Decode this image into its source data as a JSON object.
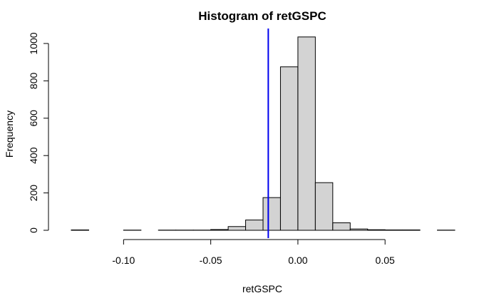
{
  "chart_data": {
    "type": "histogram",
    "title": "Histogram of retGSPC",
    "xlabel": "retGSPC",
    "ylabel": "Frequency",
    "bin_edges": [
      -0.13,
      -0.12,
      -0.11,
      -0.1,
      -0.09,
      -0.08,
      -0.07,
      -0.06,
      -0.05,
      -0.04,
      -0.03,
      -0.02,
      -0.01,
      0.0,
      0.01,
      0.02,
      0.03,
      0.04,
      0.05,
      0.06,
      0.07,
      0.08,
      0.09
    ],
    "counts": [
      2,
      0,
      0,
      1,
      0,
      1,
      1,
      1,
      4,
      20,
      55,
      175,
      875,
      1035,
      255,
      40,
      7,
      3,
      2,
      2,
      0,
      1
    ],
    "x_ticks": [
      -0.1,
      -0.05,
      0.0,
      0.05
    ],
    "x_tick_labels": [
      "-0.10",
      "-0.05",
      "0.00",
      "0.05"
    ],
    "y_ticks": [
      0,
      200,
      400,
      600,
      800,
      1000
    ],
    "y_tick_labels": [
      "0",
      "200",
      "400",
      "600",
      "800",
      "1000"
    ],
    "xlim": [
      -0.13,
      0.09
    ],
    "ylim": [
      0,
      1060
    ],
    "vline": {
      "x": -0.017,
      "color": "#0000ee"
    },
    "bar_color": "#d3d3d3",
    "grid": false,
    "legend": "none"
  }
}
